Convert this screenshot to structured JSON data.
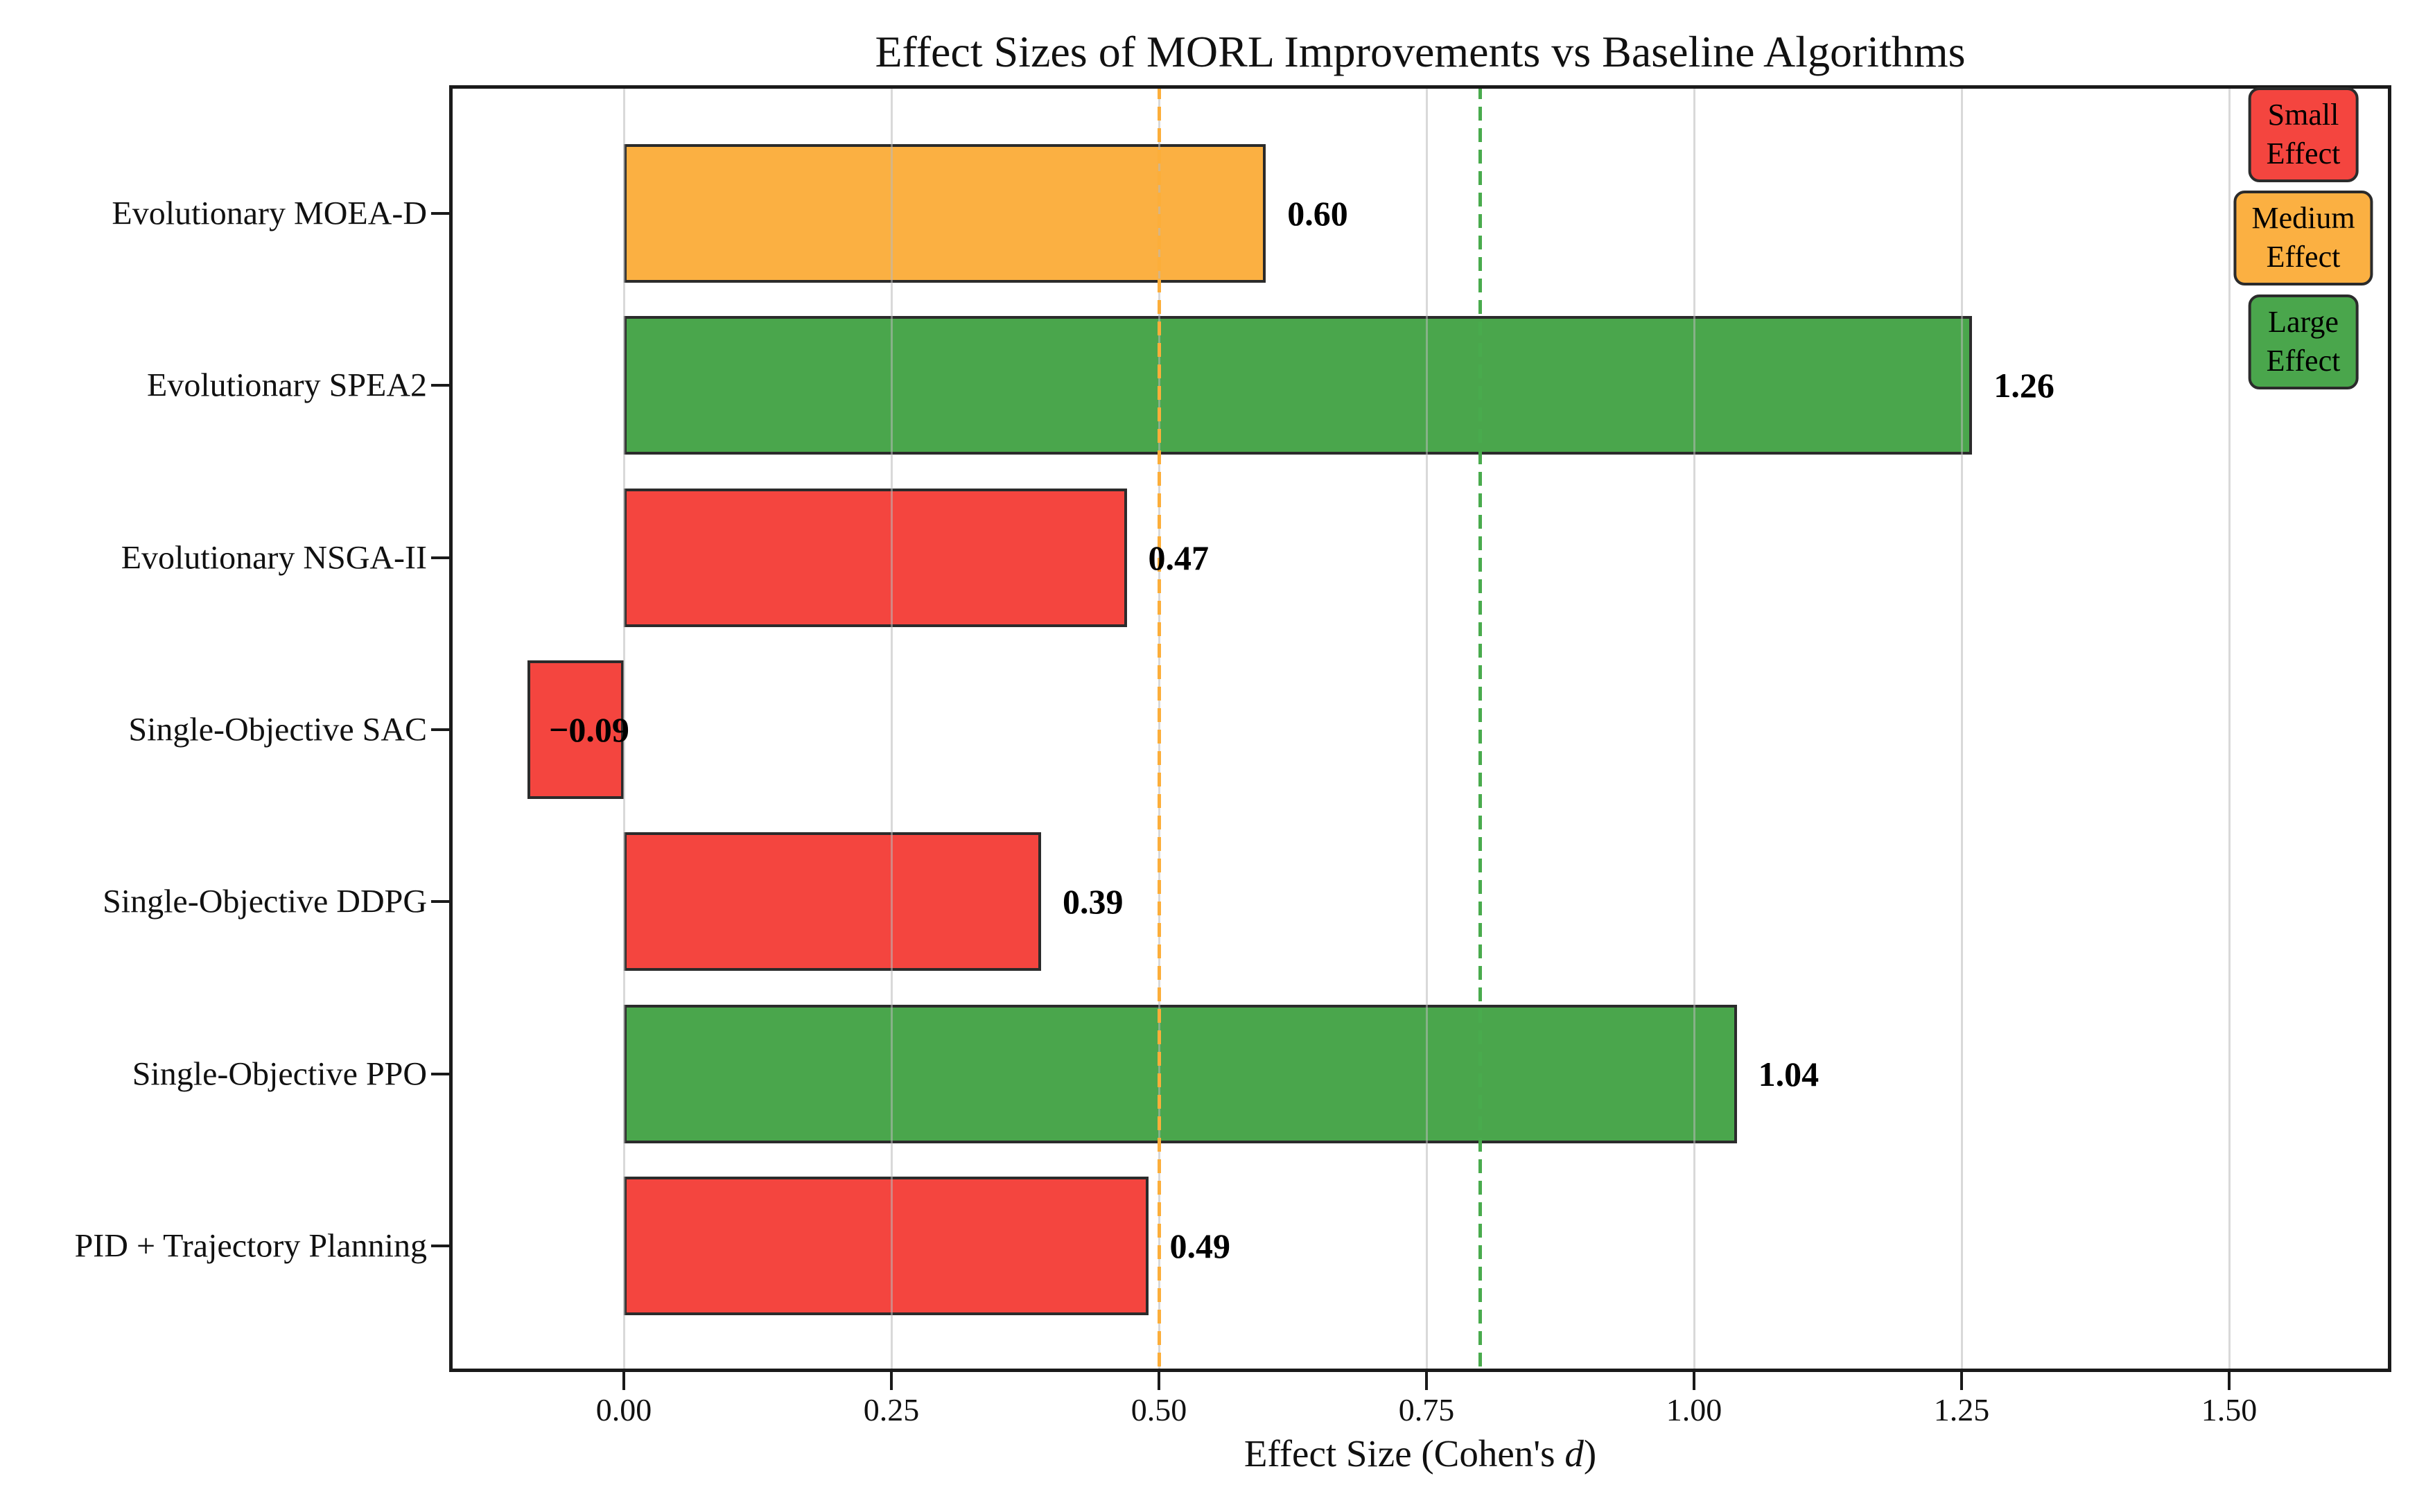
{
  "figure": {
    "title": "Effect Sizes of MORL Improvements vs Baseline Algorithms"
  },
  "chart_data": {
    "type": "bar",
    "orientation": "horizontal",
    "title": "Effect Sizes of MORL Improvements vs Baseline Algorithms",
    "xlabel": "Effect Size (Cohen's d)",
    "xlabel_parts": {
      "prefix": "Effect Size (Cohen's ",
      "italic": "d",
      "suffix": ")"
    },
    "categories": [
      "Evolutionary MOEA-D",
      "Evolutionary SPEA2",
      "Evolutionary NSGA-II",
      "Single-Objective SAC",
      "Single-Objective DDPG",
      "Single-Objective PPO",
      "PID + Trajectory Planning"
    ],
    "values": [
      0.6,
      1.26,
      0.47,
      -0.09,
      0.39,
      1.04,
      0.49
    ],
    "value_labels": [
      "0.60",
      "1.26",
      "0.47",
      "−0.09",
      "0.39",
      "1.04",
      "0.49"
    ],
    "effect_class": [
      "medium",
      "large",
      "small",
      "small",
      "small",
      "large",
      "small"
    ],
    "xlim": [
      -0.163,
      1.651
    ],
    "x_ticks": [
      {
        "value": 0.0,
        "label": "0.00"
      },
      {
        "value": 0.25,
        "label": "0.25"
      },
      {
        "value": 0.5,
        "label": "0.50"
      },
      {
        "value": 0.75,
        "label": "0.75"
      },
      {
        "value": 1.0,
        "label": "1.00"
      },
      {
        "value": 1.25,
        "label": "1.25"
      },
      {
        "value": 1.5,
        "label": "1.50"
      }
    ],
    "grid": true,
    "reference_lines": [
      {
        "value": 0.5,
        "color": "#fcae3a",
        "style": "dashed",
        "name": "medium-effect-threshold"
      },
      {
        "value": 0.8,
        "color": "#49ab4d",
        "style": "dashed",
        "name": "large-effect-threshold"
      }
    ],
    "colors": {
      "small": "#f4453f",
      "medium": "#fbb042",
      "large": "#4aa64c",
      "bar_edge": "#2b2b2b",
      "grid": "#b9b9b9",
      "spine": "#1a1a1a",
      "text": "#000000"
    },
    "legend": {
      "position": "upper right",
      "items": [
        {
          "line1": "Small",
          "line2": "Effect",
          "class": "small"
        },
        {
          "line1": "Medium",
          "line2": "Effect",
          "class": "medium"
        },
        {
          "line1": "Large",
          "line2": "Effect",
          "class": "large"
        }
      ]
    }
  }
}
